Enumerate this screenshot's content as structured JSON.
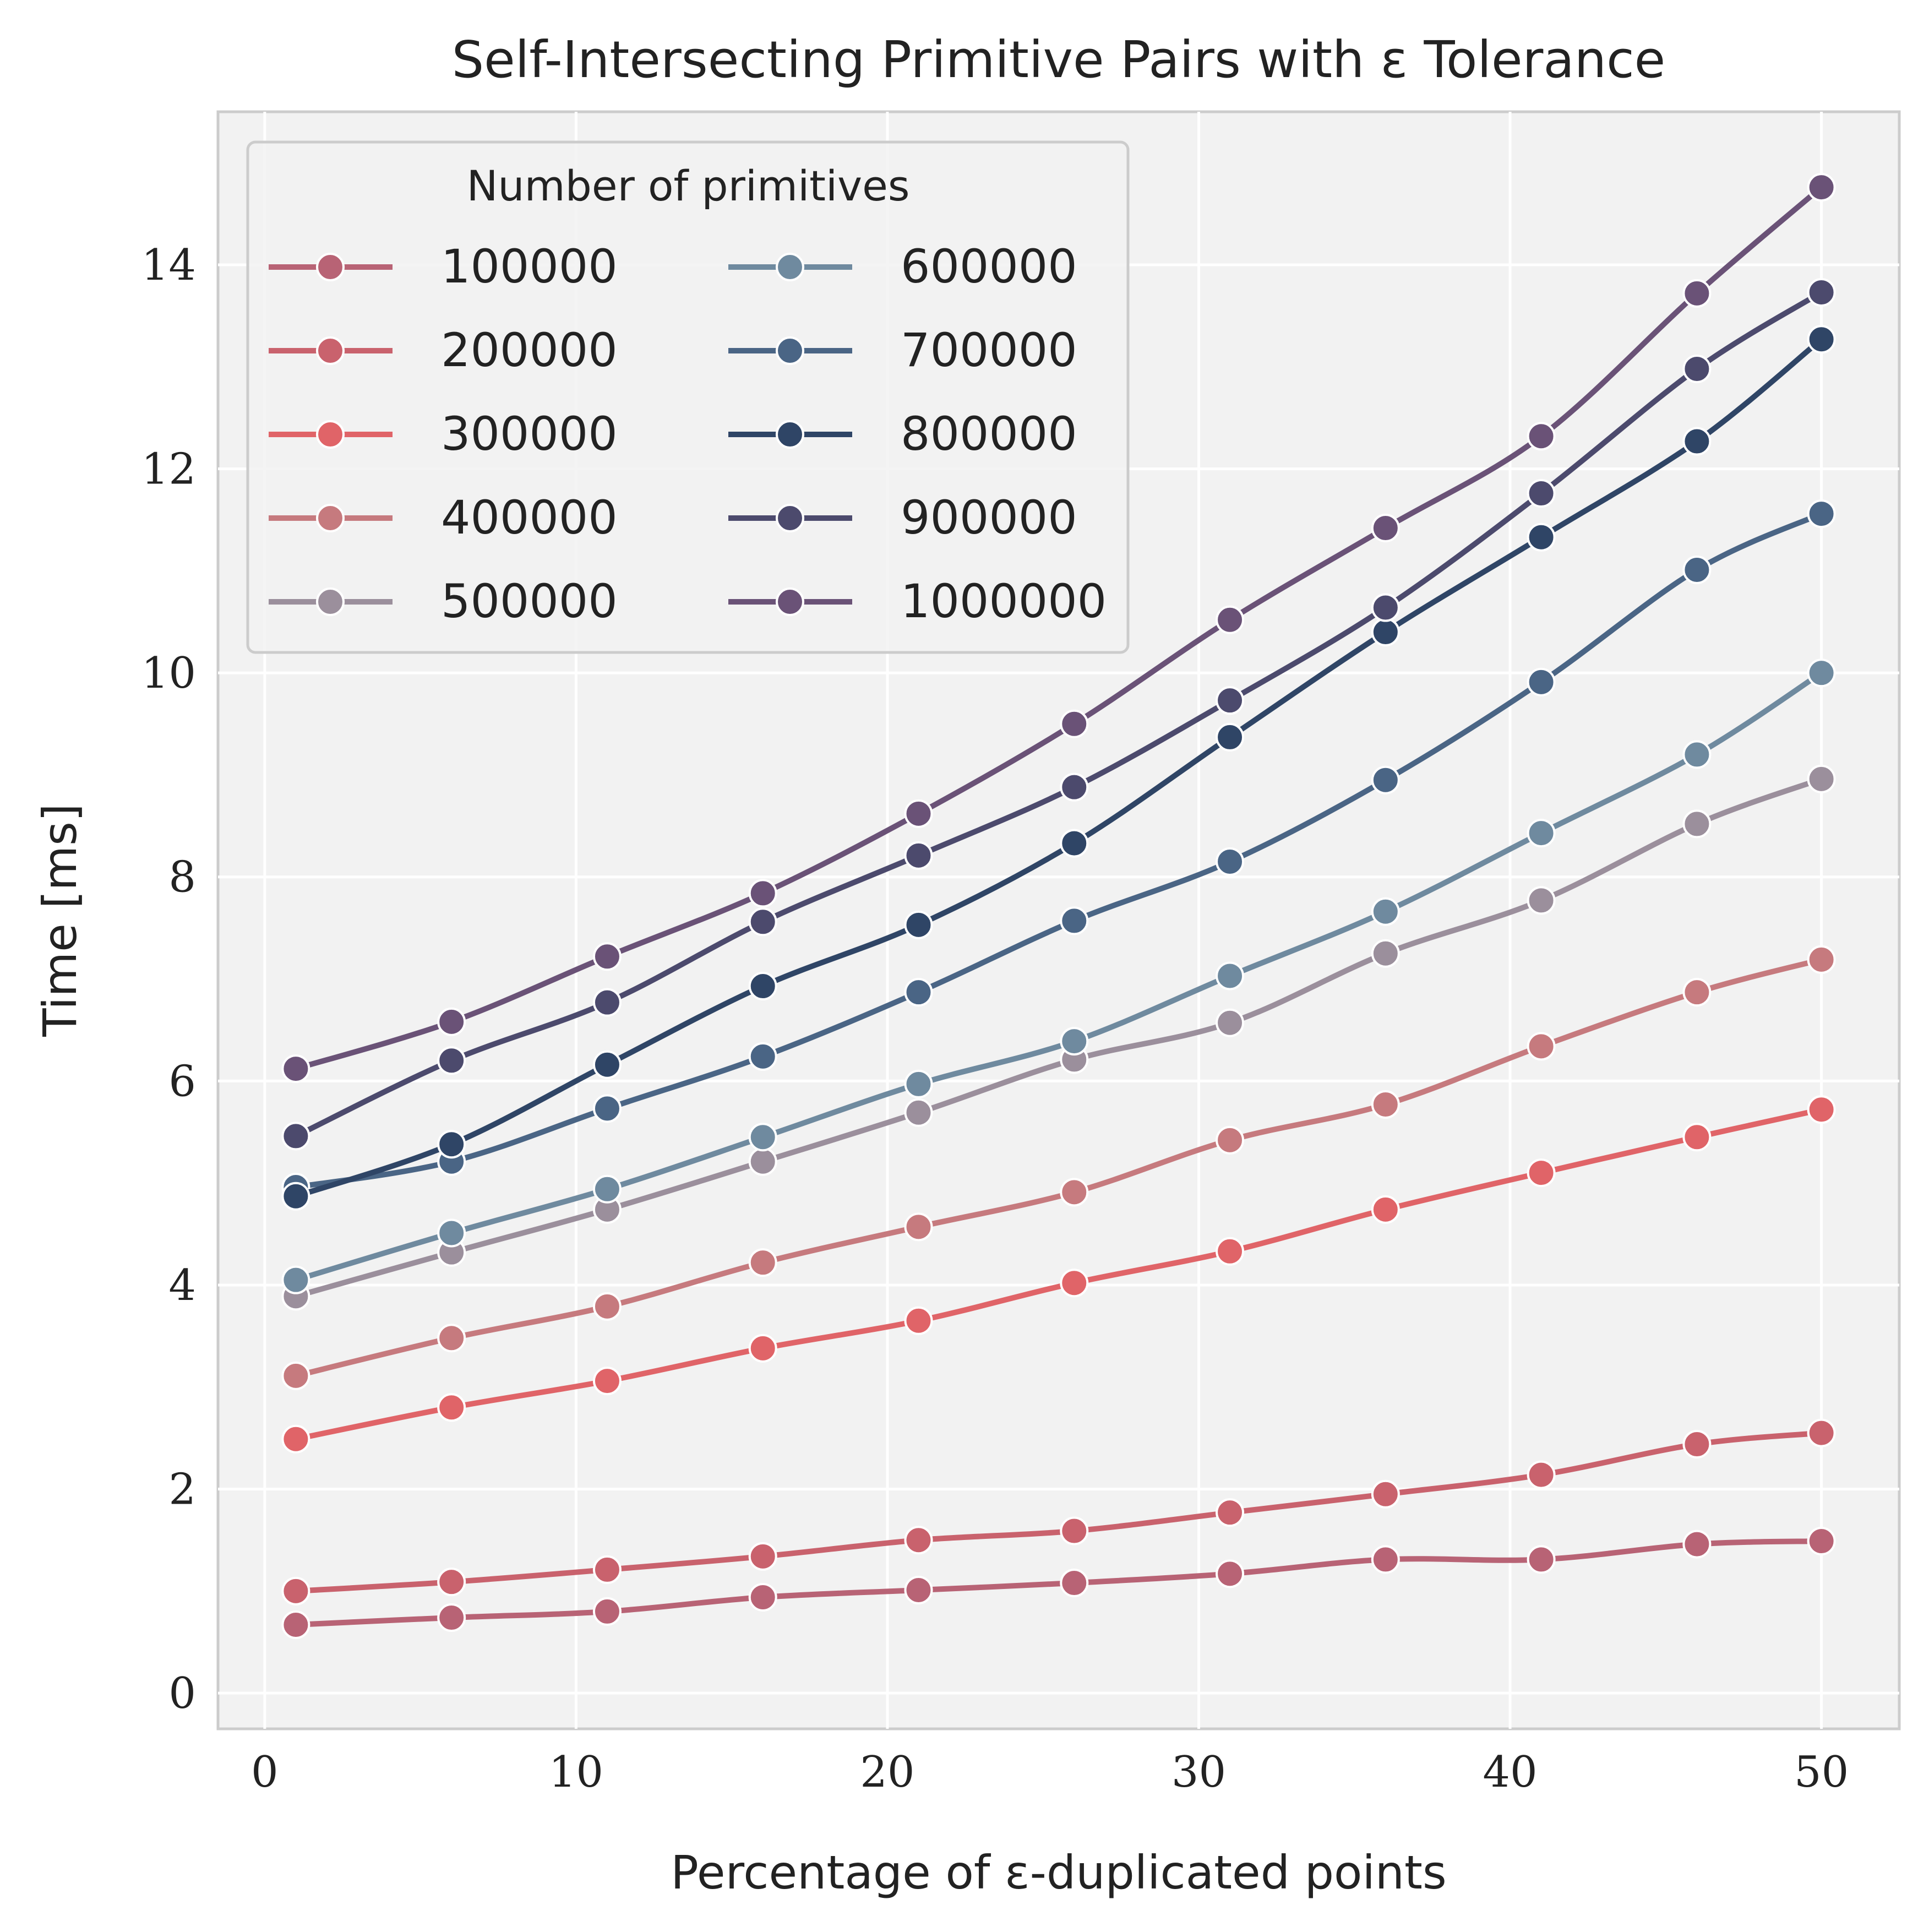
{
  "chart_data": {
    "type": "line",
    "title": "Self-Intersecting Primitive Pairs with ε Tolerance",
    "xlabel": "Percentage of ε-duplicated points",
    "ylabel": "Time [ms]",
    "xlim": [
      -1.5,
      52.5
    ],
    "ylim": [
      -0.35,
      15.5
    ],
    "xticks": [
      0,
      10,
      20,
      30,
      40,
      50
    ],
    "yticks": [
      0,
      2,
      4,
      6,
      8,
      10,
      12,
      14
    ],
    "grid": true,
    "markers": true,
    "legend": {
      "title": "Number of primitives",
      "placement": "top-left",
      "columns": 2
    },
    "x": [
      1,
      6,
      11,
      16,
      21,
      26,
      31,
      36,
      41,
      46,
      50
    ],
    "series": [
      {
        "name": "100000",
        "color": "#b86375",
        "values": [
          0.67,
          0.74,
          0.8,
          0.94,
          1.01,
          1.08,
          1.17,
          1.31,
          1.31,
          1.46,
          1.49
        ]
      },
      {
        "name": "200000",
        "color": "#c9626d",
        "values": [
          1.0,
          1.09,
          1.21,
          1.34,
          1.5,
          1.59,
          1.77,
          1.95,
          2.14,
          2.44,
          2.55
        ]
      },
      {
        "name": "300000",
        "color": "#e06468",
        "values": [
          2.49,
          2.8,
          3.06,
          3.38,
          3.65,
          4.02,
          4.33,
          4.74,
          5.1,
          5.45,
          5.72
        ]
      },
      {
        "name": "400000",
        "color": "#c67a7e",
        "values": [
          3.11,
          3.48,
          3.79,
          4.22,
          4.57,
          4.91,
          5.42,
          5.77,
          6.34,
          6.87,
          7.19
        ]
      },
      {
        "name": "500000",
        "color": "#9b8f9c",
        "values": [
          3.89,
          4.32,
          4.74,
          5.21,
          5.69,
          6.21,
          6.57,
          7.25,
          7.77,
          8.52,
          8.96
        ]
      },
      {
        "name": "600000",
        "color": "#6f8a9f",
        "values": [
          4.05,
          4.51,
          4.94,
          5.45,
          5.97,
          6.39,
          7.03,
          7.66,
          8.43,
          9.2,
          10.0
        ]
      },
      {
        "name": "700000",
        "color": "#4a6585",
        "values": [
          4.96,
          5.21,
          5.73,
          6.24,
          6.87,
          7.57,
          8.15,
          8.95,
          9.91,
          11.01,
          11.56
        ]
      },
      {
        "name": "800000",
        "color": "#2f4566",
        "values": [
          4.87,
          5.38,
          6.16,
          6.93,
          7.53,
          8.33,
          9.37,
          10.4,
          11.33,
          12.27,
          13.27
        ]
      },
      {
        "name": "900000",
        "color": "#4c4a6d",
        "values": [
          5.46,
          6.2,
          6.77,
          7.56,
          8.21,
          8.88,
          9.73,
          10.64,
          11.76,
          12.98,
          13.73
        ]
      },
      {
        "name": "1000000",
        "color": "#6a5277",
        "values": [
          6.12,
          6.58,
          7.22,
          7.84,
          8.62,
          9.5,
          10.52,
          11.42,
          12.32,
          13.72,
          14.76
        ]
      }
    ]
  }
}
